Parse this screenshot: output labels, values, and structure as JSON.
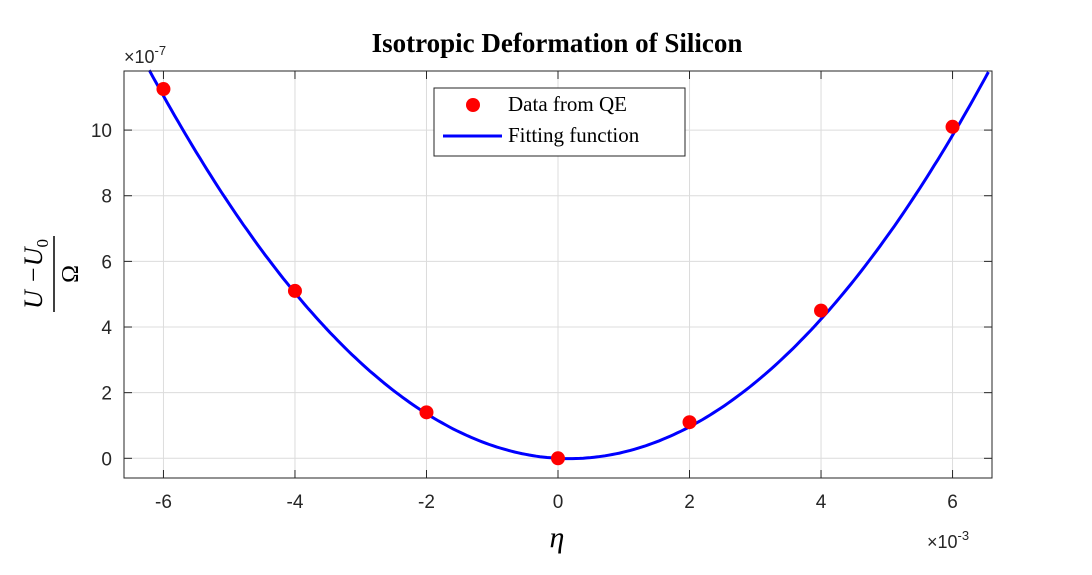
{
  "chart_data": {
    "type": "scatter",
    "title": "Isotropic Deformation of Silicon",
    "xlabel": "η",
    "ylabel": {
      "numerator": "U −U",
      "numerator_sub": "0",
      "denominator": "Ω"
    },
    "x_exponent": {
      "prefix": "×10",
      "power": "-3"
    },
    "y_exponent": {
      "prefix": "×10",
      "power": "-7"
    },
    "xlim": [
      -6.6,
      6.6
    ],
    "ylim": [
      -0.6,
      11.8
    ],
    "x_ticks": [
      -6,
      -4,
      -2,
      0,
      2,
      4,
      6
    ],
    "y_ticks": [
      0,
      2,
      4,
      6,
      8,
      10
    ],
    "grid": true,
    "legend_position": "top-center",
    "series": [
      {
        "name": "Data from QE",
        "kind": "scatter",
        "color": "#ff0000",
        "x": [
          -6,
          -4,
          -2,
          0,
          2,
          4,
          6
        ],
        "y": [
          11.25,
          5.1,
          1.4,
          0.0,
          1.1,
          4.5,
          10.1
        ]
      },
      {
        "name": "Fitting function",
        "kind": "line",
        "color": "#0000ff",
        "function": "quadratic",
        "coefficients": {
          "a": 0.29,
          "b": -0.1,
          "c": 0.0
        }
      }
    ]
  }
}
